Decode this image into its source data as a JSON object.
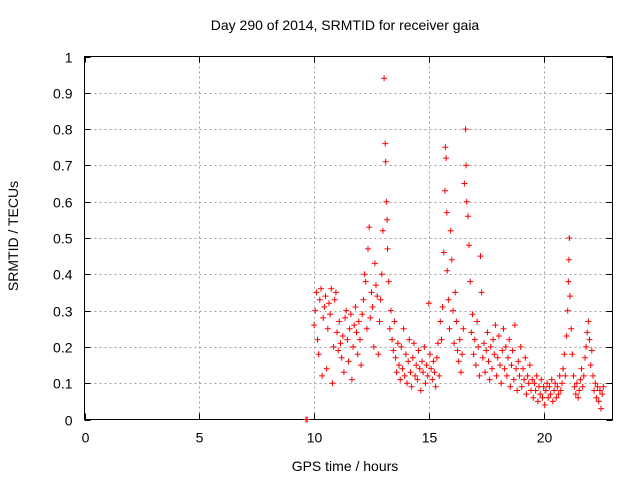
{
  "chart_data": {
    "type": "scatter",
    "title": "Day 290 of 2014, SRMTID for receiver gaia",
    "xlabel": "GPS time / hours",
    "ylabel": "SRMTID / TECUs",
    "xlim": [
      0,
      23
    ],
    "ylim": [
      0,
      1
    ],
    "xticks": [
      0,
      5,
      10,
      15,
      20
    ],
    "xtick_labels": [
      "0",
      "5",
      "10",
      "15",
      "20"
    ],
    "yticks": [
      0,
      0.1,
      0.2,
      0.3,
      0.4,
      0.5,
      0.6,
      0.7,
      0.8,
      0.9,
      1
    ],
    "ytick_labels": [
      "0",
      "0.1",
      "0.2",
      "0.3",
      "0.4",
      "0.5",
      "0.6",
      "0.7",
      "0.8",
      "0.9",
      "1"
    ],
    "grid": true,
    "marker": "+",
    "color": "#ff0000",
    "series": [
      {
        "name": "SRMTID",
        "points": [
          [
            9.65,
            0.0
          ],
          [
            9.7,
            0.0
          ],
          [
            10.0,
            0.26
          ],
          [
            10.05,
            0.3
          ],
          [
            10.1,
            0.35
          ],
          [
            10.15,
            0.22
          ],
          [
            10.2,
            0.18
          ],
          [
            10.25,
            0.33
          ],
          [
            10.3,
            0.36
          ],
          [
            10.35,
            0.12
          ],
          [
            10.4,
            0.28
          ],
          [
            10.45,
            0.31
          ],
          [
            10.5,
            0.34
          ],
          [
            10.55,
            0.14
          ],
          [
            10.6,
            0.25
          ],
          [
            10.65,
            0.32
          ],
          [
            10.7,
            0.29
          ],
          [
            10.75,
            0.36
          ],
          [
            10.8,
            0.1
          ],
          [
            10.85,
            0.2
          ],
          [
            10.9,
            0.33
          ],
          [
            10.95,
            0.35
          ],
          [
            11.0,
            0.24
          ],
          [
            11.05,
            0.19
          ],
          [
            11.1,
            0.27
          ],
          [
            11.15,
            0.21
          ],
          [
            11.2,
            0.17
          ],
          [
            11.25,
            0.23
          ],
          [
            11.3,
            0.13
          ],
          [
            11.35,
            0.28
          ],
          [
            11.4,
            0.3
          ],
          [
            11.45,
            0.22
          ],
          [
            11.5,
            0.16
          ],
          [
            11.55,
            0.25
          ],
          [
            11.6,
            0.29
          ],
          [
            11.65,
            0.11
          ],
          [
            11.7,
            0.2
          ],
          [
            11.75,
            0.26
          ],
          [
            11.8,
            0.31
          ],
          [
            11.85,
            0.24
          ],
          [
            11.9,
            0.18
          ],
          [
            11.95,
            0.27
          ],
          [
            12.0,
            0.22
          ],
          [
            12.05,
            0.15
          ],
          [
            12.1,
            0.29
          ],
          [
            12.15,
            0.33
          ],
          [
            12.2,
            0.4
          ],
          [
            12.25,
            0.38
          ],
          [
            12.3,
            0.25
          ],
          [
            12.35,
            0.47
          ],
          [
            12.4,
            0.53
          ],
          [
            12.45,
            0.28
          ],
          [
            12.5,
            0.35
          ],
          [
            12.55,
            0.31
          ],
          [
            12.6,
            0.2
          ],
          [
            12.65,
            0.43
          ],
          [
            12.7,
            0.37
          ],
          [
            12.75,
            0.34
          ],
          [
            12.8,
            0.18
          ],
          [
            12.85,
            0.27
          ],
          [
            12.9,
            0.33
          ],
          [
            12.95,
            0.4
          ],
          [
            13.0,
            0.52
          ],
          [
            13.05,
            0.94
          ],
          [
            13.1,
            0.76
          ],
          [
            13.12,
            0.71
          ],
          [
            13.15,
            0.6
          ],
          [
            13.18,
            0.55
          ],
          [
            13.2,
            0.47
          ],
          [
            13.25,
            0.38
          ],
          [
            13.3,
            0.25
          ],
          [
            13.35,
            0.3
          ],
          [
            13.4,
            0.22
          ],
          [
            13.45,
            0.19
          ],
          [
            13.5,
            0.27
          ],
          [
            13.55,
            0.17
          ],
          [
            13.6,
            0.13
          ],
          [
            13.65,
            0.21
          ],
          [
            13.7,
            0.15
          ],
          [
            13.75,
            0.11
          ],
          [
            13.8,
            0.2
          ],
          [
            13.85,
            0.14
          ],
          [
            13.9,
            0.25
          ],
          [
            13.95,
            0.12
          ],
          [
            14.0,
            0.18
          ],
          [
            14.05,
            0.1
          ],
          [
            14.1,
            0.16
          ],
          [
            14.15,
            0.22
          ],
          [
            14.2,
            0.13
          ],
          [
            14.25,
            0.09
          ],
          [
            14.3,
            0.17
          ],
          [
            14.35,
            0.21
          ],
          [
            14.4,
            0.12
          ],
          [
            14.45,
            0.15
          ],
          [
            14.5,
            0.11
          ],
          [
            14.55,
            0.19
          ],
          [
            14.6,
            0.14
          ],
          [
            14.65,
            0.08
          ],
          [
            14.7,
            0.16
          ],
          [
            14.75,
            0.13
          ],
          [
            14.8,
            0.2
          ],
          [
            14.85,
            0.1
          ],
          [
            14.9,
            0.15
          ],
          [
            14.95,
            0.12
          ],
          [
            15.0,
            0.32
          ],
          [
            15.05,
            0.18
          ],
          [
            15.1,
            0.14
          ],
          [
            15.15,
            0.11
          ],
          [
            15.2,
            0.16
          ],
          [
            15.25,
            0.13
          ],
          [
            15.3,
            0.09
          ],
          [
            15.35,
            0.17
          ],
          [
            15.4,
            0.21
          ],
          [
            15.45,
            0.12
          ],
          [
            15.5,
            0.27
          ],
          [
            15.55,
            0.22
          ],
          [
            15.6,
            0.31
          ],
          [
            15.65,
            0.46
          ],
          [
            15.7,
            0.63
          ],
          [
            15.72,
            0.75
          ],
          [
            15.75,
            0.72
          ],
          [
            15.78,
            0.57
          ],
          [
            15.8,
            0.41
          ],
          [
            15.85,
            0.33
          ],
          [
            15.9,
            0.25
          ],
          [
            15.95,
            0.52
          ],
          [
            16.0,
            0.44
          ],
          [
            16.05,
            0.3
          ],
          [
            16.1,
            0.21
          ],
          [
            16.15,
            0.35
          ],
          [
            16.2,
            0.27
          ],
          [
            16.25,
            0.19
          ],
          [
            16.3,
            0.16
          ],
          [
            16.35,
            0.22
          ],
          [
            16.4,
            0.13
          ],
          [
            16.45,
            0.18
          ],
          [
            16.5,
            0.25
          ],
          [
            16.55,
            0.65
          ],
          [
            16.6,
            0.8
          ],
          [
            16.62,
            0.7
          ],
          [
            16.65,
            0.6
          ],
          [
            16.7,
            0.56
          ],
          [
            16.75,
            0.48
          ],
          [
            16.8,
            0.38
          ],
          [
            16.85,
            0.24
          ],
          [
            16.9,
            0.29
          ],
          [
            16.95,
            0.18
          ],
          [
            17.0,
            0.22
          ],
          [
            17.05,
            0.15
          ],
          [
            17.1,
            0.27
          ],
          [
            17.15,
            0.2
          ],
          [
            17.2,
            0.12
          ],
          [
            17.25,
            0.45
          ],
          [
            17.3,
            0.35
          ],
          [
            17.35,
            0.17
          ],
          [
            17.4,
            0.21
          ],
          [
            17.45,
            0.13
          ],
          [
            17.5,
            0.19
          ],
          [
            17.55,
            0.24
          ],
          [
            17.6,
            0.16
          ],
          [
            17.65,
            0.11
          ],
          [
            17.7,
            0.2
          ],
          [
            17.75,
            0.14
          ],
          [
            17.8,
            0.22
          ],
          [
            17.85,
            0.18
          ],
          [
            17.9,
            0.26
          ],
          [
            17.95,
            0.12
          ],
          [
            18.0,
            0.17
          ],
          [
            18.05,
            0.23
          ],
          [
            18.1,
            0.15
          ],
          [
            18.15,
            0.1
          ],
          [
            18.2,
            0.19
          ],
          [
            18.25,
            0.25
          ],
          [
            18.3,
            0.14
          ],
          [
            18.35,
            0.2
          ],
          [
            18.4,
            0.12
          ],
          [
            18.45,
            0.17
          ],
          [
            18.5,
            0.22
          ],
          [
            18.55,
            0.09
          ],
          [
            18.6,
            0.15
          ],
          [
            18.65,
            0.19
          ],
          [
            18.7,
            0.11
          ],
          [
            18.75,
            0.26
          ],
          [
            18.8,
            0.14
          ],
          [
            18.85,
            0.08
          ],
          [
            18.9,
            0.16
          ],
          [
            18.95,
            0.12
          ],
          [
            19.0,
            0.2
          ],
          [
            19.05,
            0.09
          ],
          [
            19.1,
            0.14
          ],
          [
            19.15,
            0.11
          ],
          [
            19.2,
            0.17
          ],
          [
            19.25,
            0.07
          ],
          [
            19.3,
            0.12
          ],
          [
            19.35,
            0.1
          ],
          [
            19.4,
            0.15
          ],
          [
            19.45,
            0.08
          ],
          [
            19.5,
            0.11
          ],
          [
            19.55,
            0.06
          ],
          [
            19.6,
            0.1
          ],
          [
            19.65,
            0.08
          ],
          [
            19.7,
            0.12
          ],
          [
            19.75,
            0.05
          ],
          [
            19.8,
            0.09
          ],
          [
            19.85,
            0.07
          ],
          [
            19.9,
            0.11
          ],
          [
            19.95,
            0.06
          ],
          [
            20.0,
            0.09
          ],
          [
            20.05,
            0.04
          ],
          [
            20.1,
            0.08
          ],
          [
            20.15,
            0.1
          ],
          [
            20.2,
            0.06
          ],
          [
            20.25,
            0.09
          ],
          [
            20.3,
            0.07
          ],
          [
            20.35,
            0.11
          ],
          [
            20.4,
            0.05
          ],
          [
            20.45,
            0.08
          ],
          [
            20.5,
            0.1
          ],
          [
            20.55,
            0.06
          ],
          [
            20.6,
            0.09
          ],
          [
            20.65,
            0.07
          ],
          [
            20.7,
            0.12
          ],
          [
            20.75,
            0.08
          ],
          [
            20.8,
            0.1
          ],
          [
            20.85,
            0.14
          ],
          [
            20.9,
            0.18
          ],
          [
            20.95,
            0.12
          ],
          [
            21.0,
            0.23
          ],
          [
            21.05,
            0.3
          ],
          [
            21.08,
            0.38
          ],
          [
            21.1,
            0.44
          ],
          [
            21.12,
            0.5
          ],
          [
            21.15,
            0.34
          ],
          [
            21.2,
            0.25
          ],
          [
            21.25,
            0.18
          ],
          [
            21.3,
            0.12
          ],
          [
            21.35,
            0.09
          ],
          [
            21.4,
            0.07
          ],
          [
            21.45,
            0.1
          ],
          [
            21.5,
            0.06
          ],
          [
            21.55,
            0.08
          ],
          [
            21.6,
            0.11
          ],
          [
            21.65,
            0.14
          ],
          [
            21.7,
            0.09
          ],
          [
            21.75,
            0.12
          ],
          [
            21.8,
            0.17
          ],
          [
            21.85,
            0.2
          ],
          [
            21.9,
            0.24
          ],
          [
            21.95,
            0.27
          ],
          [
            22.0,
            0.22
          ],
          [
            22.05,
            0.15
          ],
          [
            22.1,
            0.19
          ],
          [
            22.15,
            0.12
          ],
          [
            22.2,
            0.08
          ],
          [
            22.25,
            0.1
          ],
          [
            22.3,
            0.06
          ],
          [
            22.35,
            0.09
          ],
          [
            22.4,
            0.05
          ],
          [
            22.45,
            0.08
          ],
          [
            22.5,
            0.03
          ],
          [
            22.55,
            0.07
          ],
          [
            22.6,
            0.09
          ]
        ]
      }
    ]
  }
}
